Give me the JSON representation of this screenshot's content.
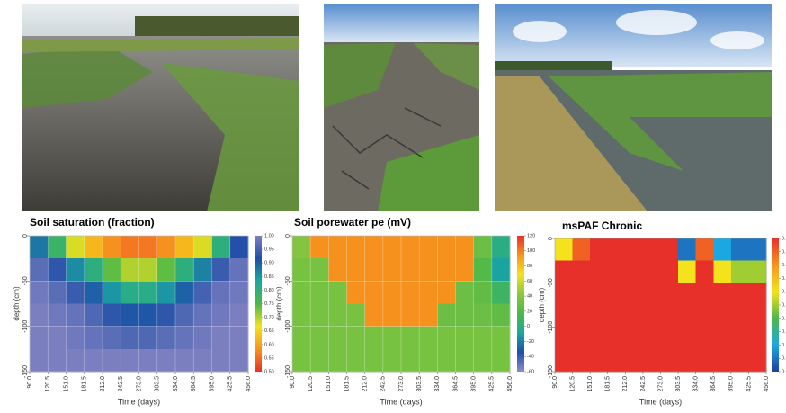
{
  "chart_data": [
    {
      "type": "heatmap",
      "title": "Soil saturation (fraction)",
      "xlabel": "Time (days)",
      "ylabel": "depth (cm)",
      "xlim": [
        90,
        456
      ],
      "ylim": [
        -150,
        0
      ],
      "xticks": [
        {
          "value": 90,
          "label": "90.0"
        },
        {
          "value": 120.5,
          "label": "120.5"
        },
        {
          "value": 151,
          "label": "151.0"
        },
        {
          "value": 181.5,
          "label": "181.5"
        },
        {
          "value": 212,
          "label": "212.0"
        },
        {
          "value": 242.5,
          "label": "242.5"
        },
        {
          "value": 273,
          "label": "273.0"
        },
        {
          "value": 303.5,
          "label": "303.5"
        },
        {
          "value": 334,
          "label": "334.0"
        },
        {
          "value": 364.5,
          "label": "364.5"
        },
        {
          "value": 395,
          "label": "395.0"
        },
        {
          "value": 425.5,
          "label": "425.5"
        },
        {
          "value": 456,
          "label": "456.0"
        }
      ],
      "yticks": [
        0,
        -50,
        -100,
        -150
      ],
      "x": [
        105.25,
        135.75,
        166.25,
        196.75,
        227.25,
        257.75,
        288.25,
        318.75,
        349.25,
        379.75,
        410.25,
        440.75
      ],
      "y": [
        -12.5,
        -37.5,
        -62.5,
        -87.5,
        -112.5,
        -137.5
      ],
      "z": [
        [
          0.88,
          0.78,
          0.68,
          0.62,
          0.58,
          0.56,
          0.56,
          0.58,
          0.62,
          0.68,
          0.8,
          0.92
        ],
        [
          0.97,
          0.93,
          0.86,
          0.8,
          0.74,
          0.7,
          0.7,
          0.74,
          0.8,
          0.87,
          0.94,
          0.98
        ],
        [
          0.99,
          0.97,
          0.94,
          0.9,
          0.85,
          0.81,
          0.81,
          0.85,
          0.9,
          0.95,
          0.98,
          0.99
        ],
        [
          1.0,
          0.99,
          0.98,
          0.96,
          0.93,
          0.91,
          0.91,
          0.93,
          0.96,
          0.98,
          0.99,
          1.0
        ],
        [
          1.0,
          1.0,
          0.99,
          0.98,
          0.97,
          0.96,
          0.96,
          0.97,
          0.98,
          0.99,
          1.0,
          1.0
        ],
        [
          1.0,
          1.0,
          1.0,
          1.0,
          1.0,
          1.0,
          1.0,
          1.0,
          1.0,
          1.0,
          1.0,
          1.0
        ]
      ],
      "zlim": [
        0.5,
        1.0
      ],
      "zticks": [
        {
          "value": 0.5,
          "label": "0.50"
        },
        {
          "value": 0.55,
          "label": "0.55"
        },
        {
          "value": 0.6,
          "label": "0.60"
        },
        {
          "value": 0.65,
          "label": "0.65"
        },
        {
          "value": 0.7,
          "label": "0.70"
        },
        {
          "value": 0.75,
          "label": "0.75"
        },
        {
          "value": 0.8,
          "label": "0.80"
        },
        {
          "value": 0.85,
          "label": "0.85"
        },
        {
          "value": 0.9,
          "label": "0.90"
        },
        {
          "value": 0.95,
          "label": "0.95"
        },
        {
          "value": 1.0,
          "label": "1.00"
        }
      ],
      "colors": [
        "#e8302a",
        "#f7941d",
        "#f4e31c",
        "#4cb848",
        "#1ba8a0",
        "#1f4fa8",
        "#7b7fc0"
      ],
      "grid": true
    },
    {
      "type": "heatmap",
      "title": "Soil porewater pe (mV)",
      "xlabel": "Time (days)",
      "ylabel": "depth (cm)",
      "xlim": [
        90,
        456
      ],
      "ylim": [
        -150,
        0
      ],
      "xticks": [
        {
          "value": 90,
          "label": "90.0"
        },
        {
          "value": 120.5,
          "label": "120.5"
        },
        {
          "value": 151,
          "label": "151.0"
        },
        {
          "value": 181.5,
          "label": "181.5"
        },
        {
          "value": 212,
          "label": "212.0"
        },
        {
          "value": 242.5,
          "label": "242.5"
        },
        {
          "value": 273,
          "label": "273.0"
        },
        {
          "value": 303.5,
          "label": "303.5"
        },
        {
          "value": 334,
          "label": "334.0"
        },
        {
          "value": 364.5,
          "label": "364.5"
        },
        {
          "value": 395,
          "label": "395.0"
        },
        {
          "value": 425.5,
          "label": "425.5"
        },
        {
          "value": 456,
          "label": "456.0"
        }
      ],
      "yticks": [
        0,
        -50,
        -100,
        -150
      ],
      "x": [
        105.25,
        135.75,
        166.25,
        196.75,
        227.25,
        257.75,
        288.25,
        318.75,
        349.25,
        379.75,
        410.25,
        440.75
      ],
      "y": [
        -12.5,
        -37.5,
        -62.5,
        -87.5,
        -112.5,
        -137.5
      ],
      "z": [
        [
          40,
          95,
          95,
          95,
          95,
          95,
          95,
          95,
          95,
          95,
          30,
          0
        ],
        [
          35,
          35,
          95,
          95,
          95,
          95,
          95,
          95,
          95,
          95,
          20,
          -10
        ],
        [
          35,
          35,
          35,
          95,
          95,
          95,
          95,
          95,
          95,
          30,
          25,
          10
        ],
        [
          35,
          35,
          35,
          35,
          95,
          95,
          95,
          95,
          30,
          30,
          30,
          25
        ],
        [
          35,
          35,
          35,
          35,
          35,
          35,
          35,
          35,
          35,
          35,
          35,
          35
        ],
        [
          35,
          35,
          35,
          35,
          35,
          35,
          35,
          35,
          35,
          35,
          35,
          35
        ]
      ],
      "zlim": [
        -60,
        120
      ],
      "zticks": [
        -60,
        -40,
        -20,
        0,
        20,
        40,
        60,
        80,
        100,
        120
      ],
      "colors": [
        "#8a8cc8",
        "#1f4fa8",
        "#1ba8a0",
        "#4cb848",
        "#8cc63f",
        "#f4e31c",
        "#f7941d",
        "#e8302a"
      ],
      "grid": true
    },
    {
      "type": "heatmap",
      "title": "msPAF Chronic",
      "xlabel": "Time (days)",
      "ylabel": "depth (cm)",
      "xlim": [
        90,
        456
      ],
      "ylim": [
        -150,
        0
      ],
      "xticks": [
        {
          "value": 90,
          "label": "90.0"
        },
        {
          "value": 120.5,
          "label": "120.5"
        },
        {
          "value": 151,
          "label": "151.0"
        },
        {
          "value": 181.5,
          "label": "181.5"
        },
        {
          "value": 212,
          "label": "212.0"
        },
        {
          "value": 242.5,
          "label": "242.5"
        },
        {
          "value": 273,
          "label": "273.0"
        },
        {
          "value": 303.5,
          "label": "303.5"
        },
        {
          "value": 334,
          "label": "334.0"
        },
        {
          "value": 364.5,
          "label": "364.5"
        },
        {
          "value": 395,
          "label": "395.0"
        },
        {
          "value": 425.5,
          "label": "425.5"
        },
        {
          "value": 456,
          "label": "456.0"
        }
      ],
      "yticks": [
        0,
        -50,
        -100,
        -150
      ],
      "x": [
        105.25,
        135.75,
        166.25,
        196.75,
        227.25,
        257.75,
        288.25,
        318.75,
        349.25,
        379.75,
        410.25,
        440.75
      ],
      "y": [
        -12.5,
        -37.5,
        -62.5,
        -87.5,
        -112.5,
        -137.5
      ],
      "z": [
        [
          0.3,
          0.45,
          0.5,
          0.5,
          0.5,
          0.5,
          0.5,
          0.05,
          0.45,
          0.1,
          0.05,
          0.05
        ],
        [
          0.5,
          0.5,
          0.5,
          0.5,
          0.5,
          0.5,
          0.5,
          0.3,
          0.5,
          0.3,
          0.25,
          0.25
        ],
        [
          0.5,
          0.5,
          0.5,
          0.5,
          0.5,
          0.5,
          0.5,
          0.5,
          0.5,
          0.5,
          0.5,
          0.5
        ],
        [
          0.5,
          0.5,
          0.5,
          0.5,
          0.5,
          0.5,
          0.5,
          0.5,
          0.5,
          0.5,
          0.5,
          0.5
        ],
        [
          0.5,
          0.5,
          0.5,
          0.5,
          0.5,
          0.5,
          0.5,
          0.5,
          0.5,
          0.5,
          0.5,
          0.5
        ],
        [
          0.5,
          0.5,
          0.5,
          0.5,
          0.5,
          0.5,
          0.5,
          0.5,
          0.5,
          0.5,
          0.5,
          0.5
        ]
      ],
      "zlim": [
        0,
        0.5
      ],
      "zticks": [
        {
          "value": 0,
          "label": "0.00"
        },
        {
          "value": 0.05,
          "label": "0.05"
        },
        {
          "value": 0.1,
          "label": "0.10"
        },
        {
          "value": 0.15,
          "label": "0.15"
        },
        {
          "value": 0.2,
          "label": "0.20"
        },
        {
          "value": 0.25,
          "label": "0.25"
        },
        {
          "value": 0.3,
          "label": "0.30"
        },
        {
          "value": 0.35,
          "label": "0.35"
        },
        {
          "value": 0.4,
          "label": "0.40"
        },
        {
          "value": 0.45,
          "label": "0.45"
        },
        {
          "value": 0.5,
          "label": "0.50"
        }
      ],
      "colors": [
        "#1f3fa0",
        "#1ba8e0",
        "#4cb848",
        "#f4e31c",
        "#f7941d",
        "#e8302a"
      ],
      "grid": false
    }
  ]
}
